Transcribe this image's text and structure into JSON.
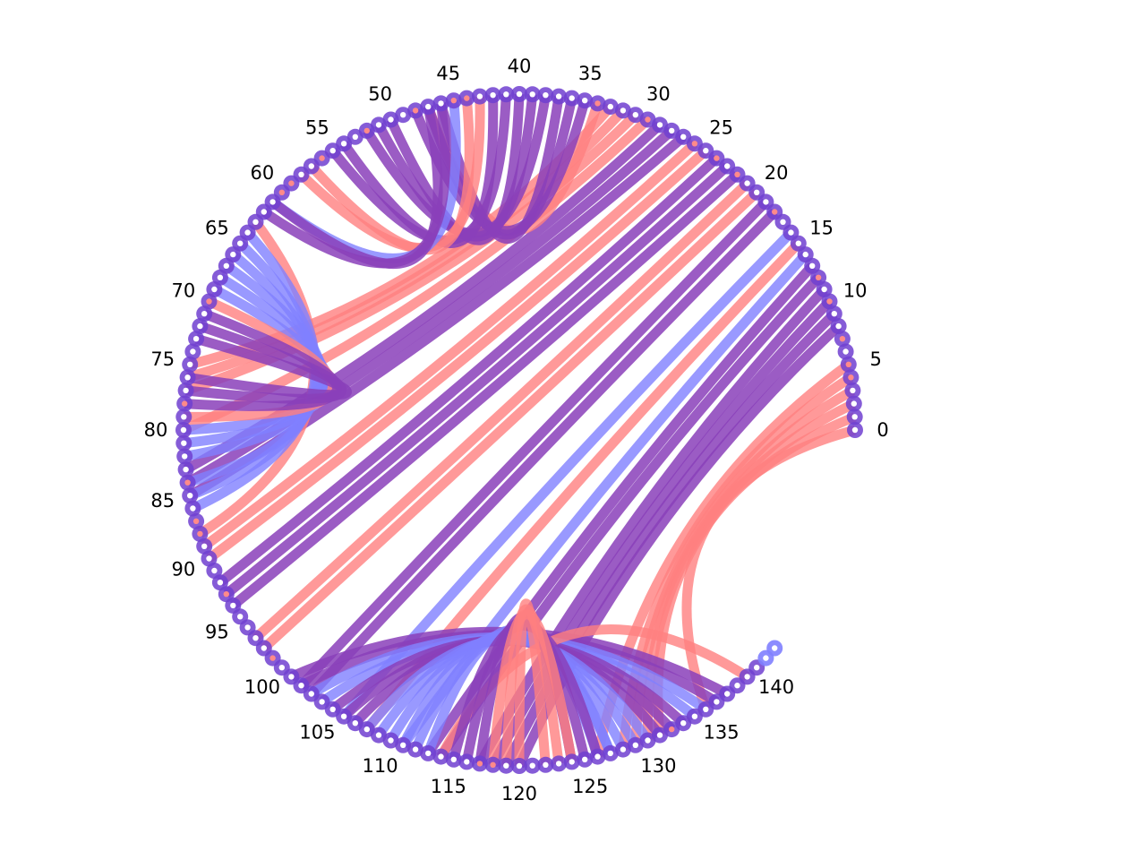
{
  "diagram": {
    "type": "arc-diagram",
    "node_count": 143,
    "label_step": 5,
    "tick_labels": [
      "0",
      "5",
      "10",
      "15",
      "20",
      "25",
      "30",
      "35",
      "40",
      "45",
      "50",
      "55",
      "60",
      "65",
      "70",
      "75",
      "80",
      "85",
      "90",
      "95",
      "100",
      "105",
      "110",
      "115",
      "120",
      "125",
      "130",
      "135",
      "140"
    ],
    "colors": {
      "red": "#ff7f80",
      "blue": "#8080ff",
      "purple": "#8a3fba",
      "node_ring": "#7040d0",
      "node_fill_white": "#ffffff",
      "node_fill_red": "#ff8a8a"
    },
    "node_center_colors": "wwwwrrwrwwrwrwwwwwrwwwrwrwrwwwrwwwrwwwwwwwwwrrwwrwwwrwwwrwwrrwwwwwwwwwrwwwwwwwrwwwwwrwwrrwwwwrwwwwwrwwwwwwwwwwwwwwwwwrrwwwwwwwwwwwwwrwwwwwww",
    "edges": [
      {
        "a": 0,
        "b": 135,
        "n": 1,
        "color": "red"
      },
      {
        "a": 1,
        "b": 131,
        "n": 4,
        "color": "red"
      },
      {
        "a": 5,
        "b": 126,
        "n": 1,
        "color": "red"
      },
      {
        "a": 8,
        "b": 120,
        "n": 4,
        "color": "purple"
      },
      {
        "a": 12,
        "b": 114,
        "n": 2,
        "color": "purple"
      },
      {
        "a": 14,
        "b": 111,
        "n": 1,
        "color": "blue"
      },
      {
        "a": 15,
        "b": 108,
        "n": 1,
        "color": "red"
      },
      {
        "a": 16,
        "b": 106,
        "n": 1,
        "color": "blue"
      },
      {
        "a": 18,
        "b": 103,
        "n": 2,
        "color": "purple"
      },
      {
        "a": 20,
        "b": 98,
        "n": 2,
        "color": "red"
      },
      {
        "a": 22,
        "b": 94,
        "n": 3,
        "color": "purple"
      },
      {
        "a": 25,
        "b": 90,
        "n": 2,
        "color": "red"
      },
      {
        "a": 27,
        "b": 85,
        "n": 3,
        "color": "purple"
      },
      {
        "a": 30,
        "b": 80,
        "n": 1,
        "color": "red"
      },
      {
        "a": 31,
        "b": 77,
        "n": 3,
        "color": "red"
      },
      {
        "a": 34,
        "b": 47,
        "n": 1,
        "color": "red"
      },
      {
        "a": 35,
        "b": 48,
        "n": 3,
        "color": "purple"
      },
      {
        "a": 38,
        "b": 52,
        "n": 3,
        "color": "purple"
      },
      {
        "a": 41,
        "b": 55,
        "n": 2,
        "color": "purple"
      },
      {
        "a": 43,
        "b": 58,
        "n": 2,
        "color": "red"
      },
      {
        "a": 45,
        "b": 61,
        "n": 1,
        "color": "blue"
      },
      {
        "a": 46,
        "b": 62,
        "n": 2,
        "color": "purple"
      },
      {
        "a": 63,
        "b": 88,
        "n": 1,
        "color": "red"
      },
      {
        "a": 64,
        "b": 86,
        "n": 3,
        "color": "blue"
      },
      {
        "a": 67,
        "b": 82,
        "n": 3,
        "color": "blue"
      },
      {
        "a": 70,
        "b": 79,
        "n": 1,
        "color": "red"
      },
      {
        "a": 71,
        "b": 78,
        "n": 3,
        "color": "purple"
      },
      {
        "a": 101,
        "b": 137,
        "n": 2,
        "color": "purple"
      },
      {
        "a": 103,
        "b": 135,
        "n": 2,
        "color": "blue"
      },
      {
        "a": 105,
        "b": 133,
        "n": 3,
        "color": "purple"
      },
      {
        "a": 108,
        "b": 130,
        "n": 4,
        "color": "blue"
      },
      {
        "a": 112,
        "b": 127,
        "n": 2,
        "color": "blue"
      },
      {
        "a": 114,
        "b": 139,
        "n": 1,
        "color": "red"
      },
      {
        "a": 115,
        "b": 126,
        "n": 3,
        "color": "purple"
      },
      {
        "a": 118,
        "b": 124,
        "n": 1,
        "color": "red"
      },
      {
        "a": 119,
        "b": 123,
        "n": 2,
        "color": "red"
      }
    ]
  }
}
